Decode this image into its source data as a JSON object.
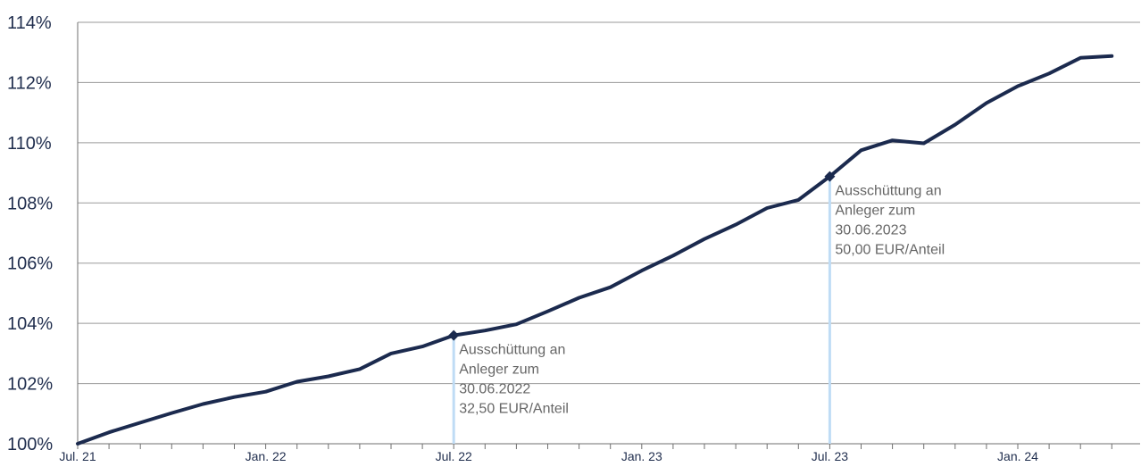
{
  "chart_data": {
    "type": "line",
    "title": "",
    "xlabel": "",
    "ylabel": "",
    "ylim": [
      100,
      114
    ],
    "grid": true,
    "legend": "none",
    "y_ticks": [
      100,
      102,
      104,
      106,
      108,
      110,
      112,
      114
    ],
    "y_tick_labels": [
      "100%",
      "102%",
      "104%",
      "106%",
      "108%",
      "110%",
      "112%",
      "114%"
    ],
    "x_ticks": [
      {
        "label": "Jul. 21",
        "index": 0
      },
      {
        "label": "Jan. 22",
        "index": 6
      },
      {
        "label": "Jul. 22",
        "index": 12
      },
      {
        "label": "Jan. 23",
        "index": 18
      },
      {
        "label": "Jul. 23",
        "index": 24
      },
      {
        "label": "Jan. 24",
        "index": 30
      }
    ],
    "x_month_count": 33,
    "series": [
      {
        "name": "",
        "color": "#1b2a4e",
        "values": [
          100.0,
          100.38,
          100.7,
          101.02,
          101.32,
          101.55,
          101.73,
          102.06,
          102.24,
          102.48,
          103.0,
          103.23,
          103.6,
          103.76,
          103.97,
          104.4,
          104.85,
          105.2,
          105.75,
          106.25,
          106.8,
          107.28,
          107.83,
          108.1,
          108.88,
          109.75,
          110.08,
          109.98,
          110.6,
          111.32,
          111.88,
          112.3,
          112.82,
          112.88
        ]
      }
    ],
    "annotations": [
      {
        "index": 12,
        "value": 103.6,
        "lines": [
          "Ausschüttung an",
          "Anleger zum",
          "30.06.2022",
          "32,50 EUR/Anteil"
        ]
      },
      {
        "index": 24,
        "value": 108.88,
        "lines": [
          "Ausschüttung an",
          "Anleger zum",
          "30.06.2023",
          "50,00 EUR/Anteil"
        ]
      }
    ],
    "colors": {
      "line": "#1b2a4e",
      "grid": "#9a9a9a",
      "axis": "#6f6f6f",
      "marker_line": "#bfdcf5",
      "annotation_text": "#666666",
      "tick_text": "#1f2d4d"
    }
  }
}
